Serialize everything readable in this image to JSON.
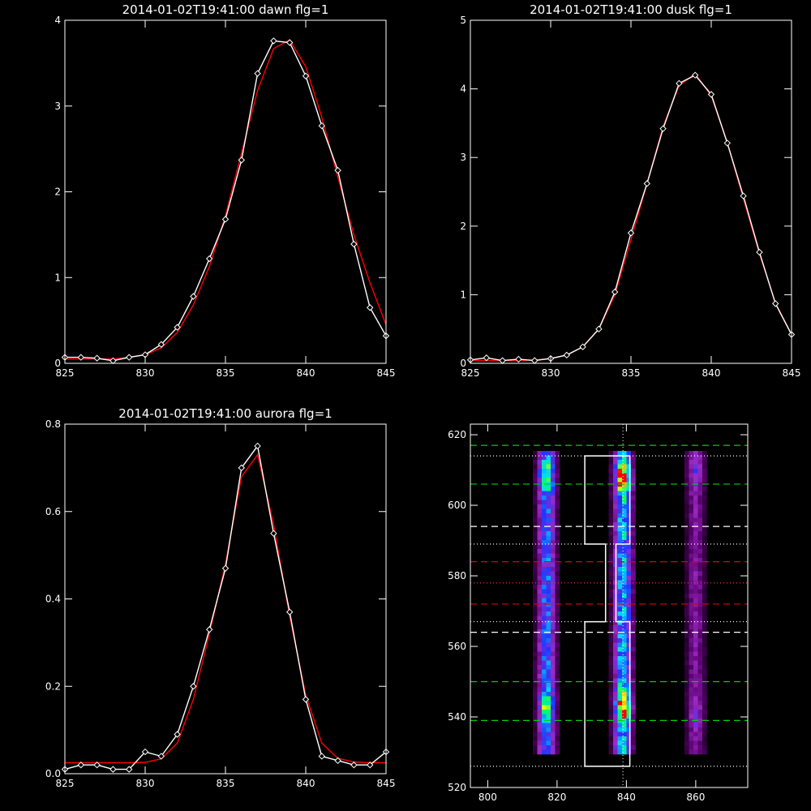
{
  "chart_data": [
    {
      "type": "line",
      "title": "2014-01-02T19:41:00 dawn flg=1",
      "xlim": [
        825,
        845
      ],
      "ylim": [
        0,
        4
      ],
      "xticks": [
        825,
        830,
        835,
        840,
        845
      ],
      "yticks": [
        0,
        1,
        2,
        3,
        4
      ],
      "series": [
        {
          "style": "white-diamonds",
          "color": "#ffffff",
          "x": [
            825,
            826,
            827,
            828,
            829,
            830,
            831,
            832,
            833,
            834,
            835,
            836,
            837,
            838,
            839,
            840,
            841,
            842,
            843,
            844,
            845
          ],
          "y": [
            0.07,
            0.07,
            0.06,
            0.03,
            0.07,
            0.1,
            0.22,
            0.42,
            0.78,
            1.22,
            1.68,
            2.37,
            3.38,
            3.76,
            3.74,
            3.35,
            2.77,
            2.25,
            1.39,
            0.65,
            0.32
          ]
        },
        {
          "style": "red-fit",
          "color": "#ff0000",
          "x": [
            825,
            826,
            827,
            828,
            829,
            830,
            831,
            832,
            833,
            834,
            835,
            836,
            837,
            838,
            839,
            840,
            841,
            842,
            843,
            844,
            845
          ],
          "y": [
            0.05,
            0.05,
            0.05,
            0.05,
            0.07,
            0.1,
            0.18,
            0.36,
            0.68,
            1.13,
            1.72,
            2.45,
            3.18,
            3.67,
            3.77,
            3.46,
            2.87,
            2.17,
            1.5,
            0.94,
            0.45
          ]
        }
      ]
    },
    {
      "type": "line",
      "title": "2014-01-02T19:41:00 dusk flg=1",
      "xlim": [
        825,
        845
      ],
      "ylim": [
        0,
        5
      ],
      "xticks": [
        825,
        830,
        835,
        840,
        845
      ],
      "yticks": [
        0,
        1,
        2,
        3,
        4,
        5
      ],
      "series": [
        {
          "style": "white-diamonds",
          "color": "#ffffff",
          "x": [
            825,
            826,
            827,
            828,
            829,
            830,
            831,
            832,
            833,
            834,
            835,
            836,
            837,
            838,
            839,
            840,
            841,
            842,
            843,
            844,
            845
          ],
          "y": [
            0.05,
            0.08,
            0.04,
            0.06,
            0.04,
            0.07,
            0.12,
            0.24,
            0.5,
            1.04,
            1.9,
            2.62,
            3.42,
            4.08,
            4.2,
            3.92,
            3.21,
            2.44,
            1.62,
            0.87,
            0.42
          ]
        },
        {
          "style": "red-fit",
          "color": "#ff0000",
          "x": [
            825,
            826,
            827,
            828,
            829,
            830,
            831,
            832,
            833,
            834,
            835,
            836,
            837,
            838,
            839,
            840,
            841,
            842,
            843,
            844,
            845
          ],
          "y": [
            0.04,
            0.04,
            0.04,
            0.04,
            0.05,
            0.07,
            0.12,
            0.24,
            0.5,
            1.0,
            1.8,
            2.62,
            3.45,
            4.05,
            4.22,
            3.9,
            3.22,
            2.4,
            1.6,
            0.88,
            0.42
          ]
        }
      ]
    },
    {
      "type": "line",
      "title": "2014-01-02T19:41:00 aurora flg=1",
      "xlim": [
        825,
        845
      ],
      "ylim": [
        0,
        0.8
      ],
      "xticks": [
        825,
        830,
        835,
        840,
        845
      ],
      "yticks": [
        0,
        0.2,
        0.4,
        0.6,
        0.8
      ],
      "ytick_labels": [
        "0.0",
        "0.2",
        "0.4",
        "0.6",
        "0.8"
      ],
      "series": [
        {
          "style": "white-diamonds",
          "color": "#ffffff",
          "x": [
            825,
            826,
            827,
            828,
            829,
            830,
            831,
            832,
            833,
            834,
            835,
            836,
            837,
            838,
            839,
            840,
            841,
            842,
            843,
            844,
            845
          ],
          "y": [
            0.01,
            0.02,
            0.02,
            0.01,
            0.01,
            0.05,
            0.04,
            0.09,
            0.2,
            0.33,
            0.47,
            0.7,
            0.75,
            0.55,
            0.37,
            0.17,
            0.04,
            0.03,
            0.02,
            0.02,
            0.05
          ]
        },
        {
          "style": "red-fit",
          "color": "#ff0000",
          "x": [
            825,
            826,
            827,
            828,
            829,
            830,
            831,
            832,
            833,
            834,
            835,
            836,
            837,
            838,
            839,
            840,
            841,
            842,
            843,
            844,
            845
          ],
          "y": [
            0.025,
            0.025,
            0.025,
            0.025,
            0.025,
            0.026,
            0.034,
            0.07,
            0.17,
            0.32,
            0.48,
            0.68,
            0.73,
            0.57,
            0.36,
            0.18,
            0.07,
            0.035,
            0.027,
            0.025,
            0.025
          ]
        }
      ]
    },
    {
      "type": "heatmap",
      "xlim": [
        795,
        875
      ],
      "ylim": [
        520,
        623
      ],
      "xticks": [
        800,
        820,
        840,
        860
      ],
      "yticks": [
        520,
        540,
        560,
        580,
        600,
        620
      ],
      "colormap": [
        "#000000",
        "#5a0070",
        "#9b2cc4",
        "#2233ff",
        "#00d8ff",
        "#00ff60",
        "#ffff00",
        "#ff0000"
      ],
      "emission_columns": [
        {
          "x": 817,
          "y_range": [
            530,
            615
          ]
        },
        {
          "x": 839,
          "y_range": [
            530,
            615
          ]
        },
        {
          "x": 860,
          "y_range": [
            530,
            615
          ]
        }
      ],
      "hotspots": [
        {
          "x": 839,
          "y": 608,
          "level": 1.0
        },
        {
          "x": 839,
          "y": 543,
          "level": 0.95
        },
        {
          "x": 817,
          "y": 608,
          "level": 0.6
        },
        {
          "x": 817,
          "y": 543,
          "level": 0.55
        },
        {
          "x": 860,
          "y": 609,
          "level": 0.25
        },
        {
          "x": 860,
          "y": 541,
          "level": 0.2
        }
      ],
      "lines": {
        "green_dashed": [
          617,
          606,
          550,
          539
        ],
        "white_dashed": [
          594,
          564
        ],
        "red_dashed": [
          584,
          572
        ],
        "white_dotted": [
          614,
          589,
          567,
          526
        ],
        "red_dotted": [
          578
        ],
        "vertical_dotted_x": [
          839
        ]
      },
      "white_box": {
        "x": [
          828,
          841
        ],
        "y_upper": [
          589,
          614
        ],
        "y_lower": [
          526,
          567
        ],
        "connector_x": [
          834,
          837
        ]
      }
    }
  ]
}
